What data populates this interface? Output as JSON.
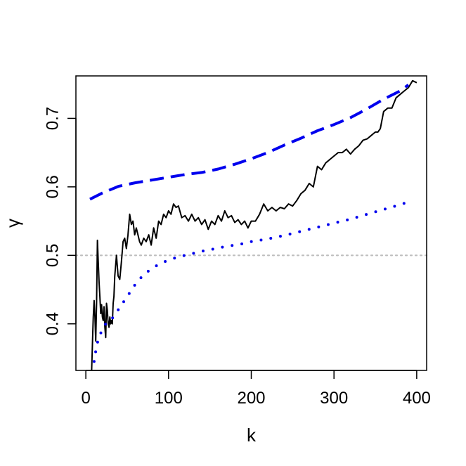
{
  "chart_data": {
    "type": "line",
    "title": "",
    "xlabel": "k",
    "ylabel": "γ",
    "xlim": [
      -12,
      412
    ],
    "ylim": [
      0.332,
      0.762
    ],
    "xticks": [
      0,
      100,
      200,
      300,
      400
    ],
    "xtick_labels": [
      "0",
      "100",
      "200",
      "300",
      "400"
    ],
    "yticks": [
      0.4,
      0.5,
      0.6,
      0.7
    ],
    "ytick_labels": [
      "0.4",
      "0.5",
      "0.6",
      "0.7"
    ],
    "grid": false,
    "reference_line": {
      "y": 0.5,
      "color": "#bebebe",
      "style": "dotted"
    },
    "series": [
      {
        "style": "solid",
        "color": "#000000",
        "x": [
          7,
          8,
          9,
          10,
          11,
          12,
          13,
          14,
          15,
          16,
          17,
          18,
          19,
          20,
          21,
          22,
          23,
          24,
          25,
          26,
          27,
          28,
          29,
          30,
          31,
          32,
          33,
          34,
          35,
          37,
          39,
          41,
          43,
          45,
          47,
          49,
          51,
          53,
          55,
          57,
          59,
          61,
          63,
          65,
          67,
          70,
          73,
          76,
          79,
          82,
          85,
          88,
          91,
          94,
          97,
          100,
          103,
          106,
          109,
          112,
          116,
          120,
          124,
          128,
          132,
          136,
          140,
          144,
          148,
          152,
          156,
          160,
          164,
          168,
          172,
          176,
          180,
          184,
          188,
          192,
          196,
          200,
          205,
          210,
          215,
          220,
          225,
          230,
          235,
          240,
          245,
          250,
          255,
          260,
          265,
          270,
          275,
          280,
          285,
          290,
          295,
          300,
          305,
          310,
          315,
          320,
          325,
          330,
          335,
          340,
          345,
          350,
          353,
          356,
          360,
          365,
          370,
          375,
          380,
          385,
          390,
          395,
          400
        ],
        "values": [
          0.332,
          0.37,
          0.41,
          0.434,
          0.41,
          0.375,
          0.43,
          0.522,
          0.49,
          0.46,
          0.44,
          0.415,
          0.428,
          0.41,
          0.405,
          0.425,
          0.395,
          0.38,
          0.43,
          0.42,
          0.4,
          0.395,
          0.41,
          0.4,
          0.405,
          0.4,
          0.43,
          0.44,
          0.47,
          0.5,
          0.47,
          0.465,
          0.49,
          0.52,
          0.525,
          0.51,
          0.53,
          0.56,
          0.545,
          0.55,
          0.53,
          0.54,
          0.53,
          0.52,
          0.515,
          0.525,
          0.52,
          0.53,
          0.515,
          0.54,
          0.525,
          0.55,
          0.545,
          0.56,
          0.555,
          0.565,
          0.56,
          0.575,
          0.57,
          0.572,
          0.555,
          0.558,
          0.55,
          0.56,
          0.55,
          0.555,
          0.545,
          0.552,
          0.538,
          0.55,
          0.545,
          0.558,
          0.55,
          0.565,
          0.555,
          0.558,
          0.548,
          0.552,
          0.545,
          0.55,
          0.54,
          0.55,
          0.55,
          0.56,
          0.575,
          0.565,
          0.57,
          0.565,
          0.57,
          0.568,
          0.575,
          0.572,
          0.58,
          0.59,
          0.595,
          0.605,
          0.6,
          0.63,
          0.625,
          0.635,
          0.64,
          0.645,
          0.65,
          0.65,
          0.655,
          0.648,
          0.655,
          0.66,
          0.668,
          0.67,
          0.675,
          0.68,
          0.68,
          0.685,
          0.71,
          0.715,
          0.715,
          0.73,
          0.735,
          0.74,
          0.745,
          0.755,
          0.752
        ]
      },
      {
        "style": "dashed",
        "color": "#0000ee",
        "x": [
          5,
          20,
          40,
          60,
          80,
          100,
          120,
          140,
          160,
          180,
          200,
          220,
          240,
          260,
          280,
          300,
          320,
          340,
          360,
          380,
          390
        ],
        "values": [
          0.582,
          0.591,
          0.601,
          0.606,
          0.61,
          0.614,
          0.618,
          0.621,
          0.626,
          0.633,
          0.641,
          0.65,
          0.661,
          0.671,
          0.682,
          0.691,
          0.701,
          0.714,
          0.728,
          0.74,
          0.749
        ]
      },
      {
        "style": "dotted",
        "color": "#0000ee",
        "x": [
          10,
          12,
          15,
          20,
          25,
          30,
          35,
          40,
          50,
          60,
          70,
          80,
          90,
          100,
          110,
          120,
          130,
          140,
          150,
          160,
          170,
          180,
          190,
          200,
          220,
          240,
          260,
          280,
          300,
          320,
          340,
          360,
          380,
          390
        ],
        "values": [
          0.345,
          0.36,
          0.378,
          0.392,
          0.402,
          0.405,
          0.413,
          0.422,
          0.44,
          0.458,
          0.472,
          0.481,
          0.488,
          0.493,
          0.497,
          0.5,
          0.503,
          0.506,
          0.508,
          0.511,
          0.513,
          0.515,
          0.517,
          0.52,
          0.524,
          0.529,
          0.535,
          0.541,
          0.547,
          0.553,
          0.56,
          0.567,
          0.574,
          0.578
        ]
      }
    ]
  }
}
